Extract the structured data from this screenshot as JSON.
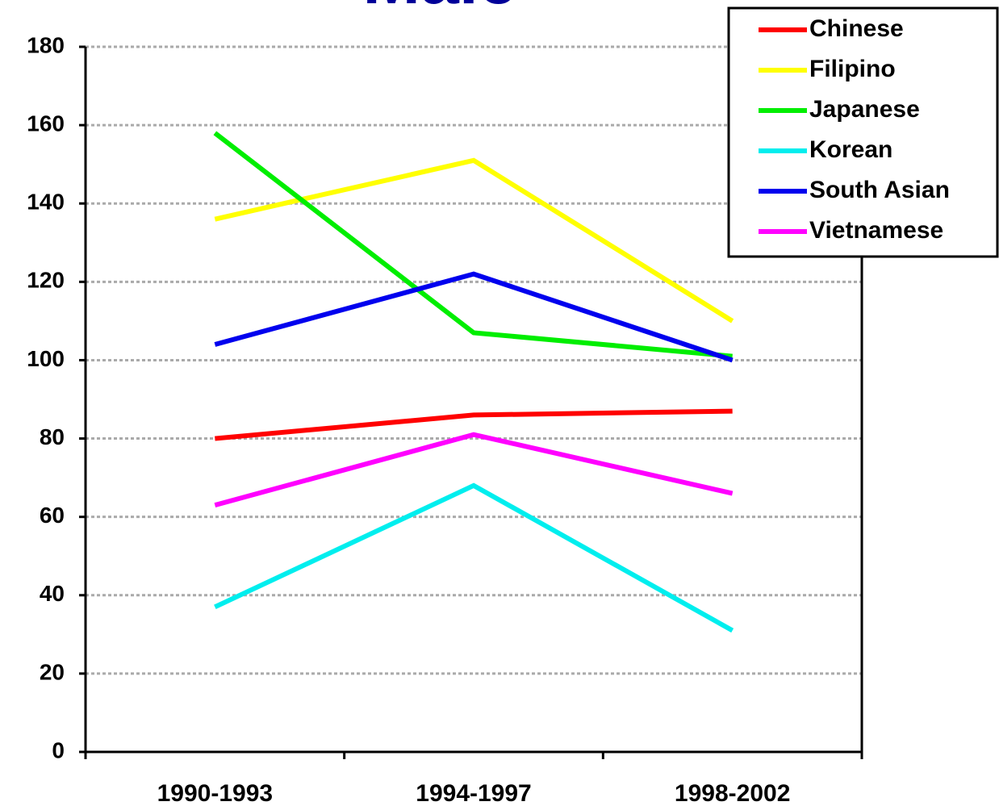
{
  "chart_data": {
    "type": "line",
    "title": "Male",
    "categories": [
      "1990-1993",
      "1994-1997",
      "1998-2002"
    ],
    "series": [
      {
        "name": "Chinese",
        "color": "#ff0000",
        "values": [
          80,
          86,
          87
        ]
      },
      {
        "name": "Filipino",
        "color": "#ffff00",
        "values": [
          136,
          151,
          110
        ]
      },
      {
        "name": "Japanese",
        "color": "#00ee00",
        "values": [
          158,
          107,
          101
        ]
      },
      {
        "name": "Korean",
        "color": "#00eeee",
        "values": [
          37,
          68,
          31
        ]
      },
      {
        "name": "South Asian",
        "color": "#0000ee",
        "values": [
          104,
          122,
          100
        ]
      },
      {
        "name": "Vietnamese",
        "color": "#ff00ff",
        "values": [
          63,
          81,
          66
        ]
      }
    ],
    "ylim": [
      0,
      180
    ],
    "yticks": [
      0,
      20,
      40,
      60,
      80,
      100,
      120,
      140,
      160,
      180
    ],
    "grid": true,
    "legend": "top-right"
  }
}
